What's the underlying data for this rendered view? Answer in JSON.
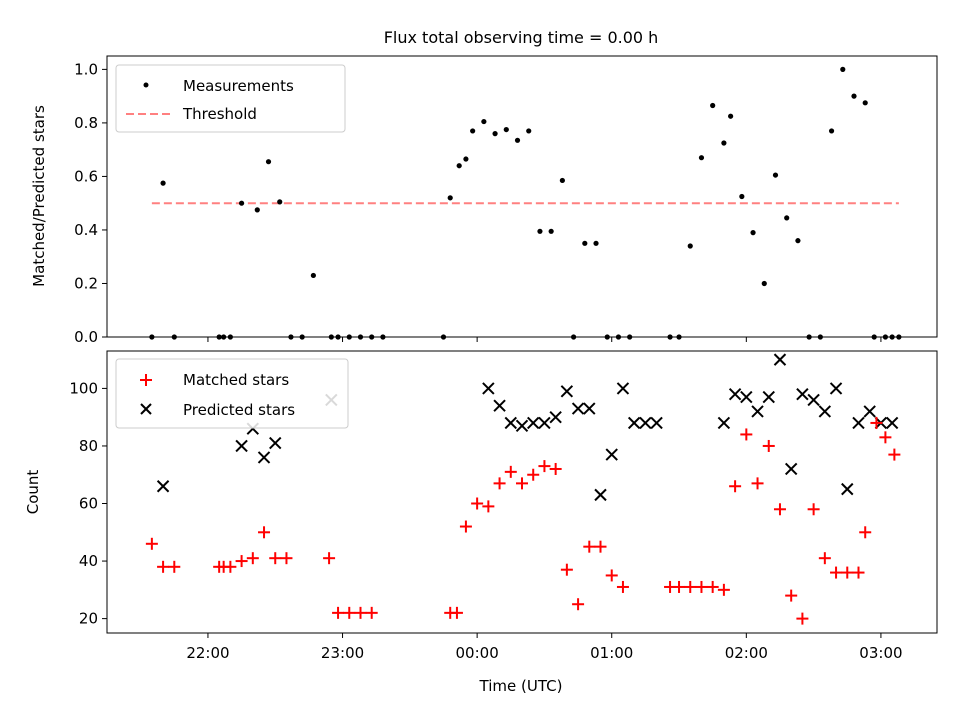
{
  "title": "Flux total observing time = 0.00 h",
  "chart_data": [
    {
      "type": "scatter",
      "ylabel": "Matched/Predicted stars",
      "ylim": [
        0,
        1.05
      ],
      "yticks": [
        "0.0",
        "0.2",
        "0.4",
        "0.6",
        "0.8",
        "1.0"
      ],
      "legend_placement": "top-left",
      "series": [
        {
          "name": "Measurements",
          "color": "#000000",
          "marker": "dot",
          "x": [
            "21:35",
            "21:40",
            "21:45",
            "22:05",
            "22:07",
            "22:10",
            "22:15",
            "22:22",
            "22:27",
            "22:32",
            "22:37",
            "22:42",
            "22:47",
            "22:55",
            "22:58",
            "23:03",
            "23:08",
            "23:13",
            "23:18",
            "23:45",
            "23:48",
            "23:52",
            "23:55",
            "23:58",
            "00:03",
            "00:08",
            "00:13",
            "00:18",
            "00:23",
            "00:28",
            "00:33",
            "00:38",
            "00:43",
            "00:48",
            "00:53",
            "00:58",
            "01:03",
            "01:08",
            "01:26",
            "01:30",
            "01:35",
            "01:40",
            "01:45",
            "01:50",
            "01:53",
            "01:58",
            "02:03",
            "02:08",
            "02:13",
            "02:18",
            "02:23",
            "02:28",
            "02:33",
            "02:38",
            "02:43",
            "02:48",
            "02:53",
            "02:57",
            "03:02",
            "03:05",
            "03:08"
          ],
          "y": [
            0.0,
            0.575,
            0.0,
            0.0,
            0.0,
            0.0,
            0.5,
            0.475,
            0.655,
            0.505,
            0.0,
            0.0,
            0.23,
            0.0,
            0.0,
            0.0,
            0.0,
            0.0,
            0.0,
            0.0,
            0.52,
            0.64,
            0.665,
            0.77,
            0.805,
            0.76,
            0.775,
            0.735,
            0.77,
            0.395,
            0.395,
            0.585,
            0.0,
            0.35,
            0.35,
            0.0,
            0.0,
            0.0,
            0.0,
            0.0,
            0.34,
            0.67,
            0.865,
            0.725,
            0.825,
            0.525,
            0.39,
            0.2,
            0.605,
            0.445,
            0.36,
            0.0,
            0.0,
            0.77,
            1.0,
            0.9,
            0.875,
            0.0,
            0.0,
            0.0,
            0.0
          ]
        },
        {
          "name": "Threshold",
          "color": "#ff8080",
          "style": "dashed",
          "x": [
            "21:35",
            "03:08"
          ],
          "y": [
            0.5,
            0.5
          ]
        }
      ]
    },
    {
      "type": "scatter",
      "xlabel": "Time (UTC)",
      "ylabel": "Count",
      "ylim": [
        15,
        113
      ],
      "yticks": [
        "20",
        "40",
        "60",
        "80",
        "100"
      ],
      "xticks": [
        "22:00",
        "23:00",
        "00:00",
        "01:00",
        "02:00",
        "03:00"
      ],
      "legend_placement": "top-left",
      "series": [
        {
          "name": "Matched stars",
          "color": "#ff0000",
          "marker": "plus",
          "x": [
            "21:35",
            "21:40",
            "21:45",
            "22:05",
            "22:07",
            "22:10",
            "22:15",
            "22:20",
            "22:25",
            "22:30",
            "22:35",
            "22:54",
            "22:58",
            "23:03",
            "23:08",
            "23:13",
            "23:48",
            "23:51",
            "23:55",
            "24:00",
            "24:05",
            "24:10",
            "24:15",
            "24:20",
            "24:25",
            "24:30",
            "24:35",
            "24:40",
            "24:45",
            "24:50",
            "24:55",
            "25:00",
            "25:05",
            "25:26",
            "25:30",
            "25:35",
            "25:40",
            "25:45",
            "25:50",
            "25:55",
            "26:00",
            "26:05",
            "26:10",
            "26:15",
            "26:20",
            "26:25",
            "26:30",
            "26:35",
            "26:40",
            "26:45",
            "26:50",
            "26:53",
            "26:58",
            "27:02",
            "27:06"
          ],
          "y": [
            46,
            38,
            38,
            38,
            38,
            38,
            40,
            41,
            50,
            41,
            41,
            41,
            22,
            22,
            22,
            22,
            22,
            22,
            52,
            60,
            59,
            67,
            71,
            67,
            70,
            73,
            72,
            37,
            25,
            45,
            45,
            35,
            31,
            31,
            31,
            31,
            31,
            31,
            30,
            66,
            84,
            67,
            80,
            58,
            28,
            20,
            58,
            41,
            36,
            36,
            36,
            50,
            88,
            83,
            77
          ]
        },
        {
          "name": "Predicted stars",
          "color": "#000000",
          "marker": "x",
          "x": [
            "21:40",
            "22:15",
            "22:20",
            "22:25",
            "22:30",
            "22:55",
            "24:05",
            "24:10",
            "24:15",
            "24:20",
            "24:25",
            "24:30",
            "24:35",
            "24:40",
            "24:45",
            "24:50",
            "24:55",
            "25:00",
            "25:05",
            "25:10",
            "25:15",
            "25:20",
            "25:50",
            "25:55",
            "26:00",
            "26:05",
            "26:10",
            "26:15",
            "26:20",
            "26:25",
            "26:30",
            "26:35",
            "26:40",
            "26:45",
            "26:50",
            "26:55",
            "27:00",
            "27:05"
          ],
          "y": [
            66,
            80,
            86,
            76,
            81,
            96,
            100,
            94,
            88,
            87,
            88,
            88,
            90,
            99,
            93,
            93,
            63,
            77,
            100,
            88,
            88,
            88,
            88,
            98,
            97,
            92,
            97,
            110,
            72,
            98,
            96,
            92,
            100,
            65,
            88,
            92,
            88,
            88
          ]
        }
      ]
    }
  ]
}
